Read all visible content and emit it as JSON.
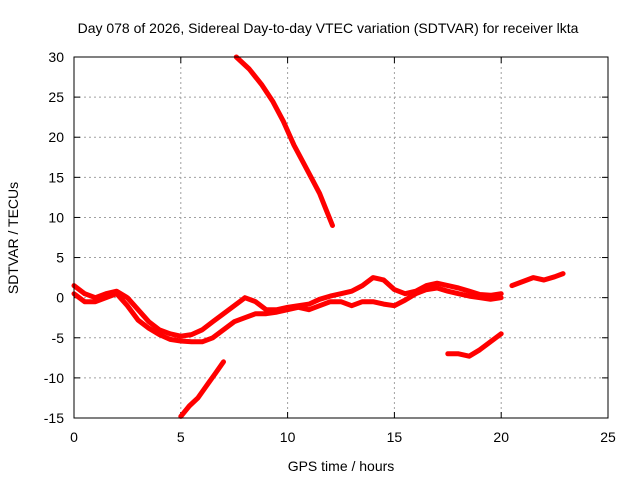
{
  "chart_data": {
    "type": "line",
    "title": "Day 078 of 2026, Sidereal Day-to-day VTEC variation (SDTVAR) for receiver lkta",
    "xlabel": "GPS time / hours",
    "ylabel": "SDTVAR / TECUs",
    "xlim": [
      0,
      25
    ],
    "ylim": [
      -15,
      30
    ],
    "xticks": [
      0,
      5,
      10,
      15,
      20,
      25
    ],
    "yticks": [
      -15,
      -10,
      -5,
      0,
      5,
      10,
      15,
      20,
      25,
      30
    ],
    "grid": true,
    "color": "#ff0000",
    "series": [
      {
        "name": "arc-high",
        "x": [
          7.6,
          8.2,
          8.8,
          9.3,
          9.8,
          10.3,
          10.7,
          11.1,
          11.5,
          11.8,
          12.1
        ],
        "y": [
          30,
          28.5,
          26.5,
          24.5,
          22,
          19,
          17,
          15,
          13,
          11,
          9
        ]
      },
      {
        "name": "arc-low-left",
        "x": [
          5.0,
          5.4,
          5.8,
          6.2,
          6.6,
          7.0
        ],
        "y": [
          -14.8,
          -13.5,
          -12.5,
          -11,
          -9.5,
          -8
        ]
      },
      {
        "name": "arc-main-upper",
        "x": [
          0.0,
          0.5,
          1.0,
          1.5,
          2.0,
          2.5,
          3.0,
          3.5,
          4.0,
          4.5,
          5.0,
          5.5,
          6.0,
          6.5,
          7.0,
          7.5,
          8.0,
          8.5,
          9.0,
          9.5,
          10.0,
          10.5,
          11.0,
          11.5,
          12.0,
          12.5,
          13.0,
          13.5,
          14.0,
          14.5,
          15.0,
          15.5,
          16.0,
          16.5,
          17.0,
          17.5,
          18.0,
          18.5,
          19.0,
          19.5,
          20.0
        ],
        "y": [
          1.5,
          0.5,
          0,
          0.5,
          0.8,
          0,
          -1.5,
          -3,
          -4,
          -4.5,
          -4.8,
          -4.6,
          -4,
          -3,
          -2,
          -1,
          0,
          -0.5,
          -1.5,
          -1.5,
          -1.2,
          -1,
          -0.8,
          -0.2,
          0.2,
          0.5,
          0.8,
          1.5,
          2.5,
          2.2,
          1,
          0.5,
          0.8,
          1.5,
          1.8,
          1.5,
          1.2,
          0.8,
          0.4,
          0.3,
          0.5
        ]
      },
      {
        "name": "arc-main-lower",
        "x": [
          0.0,
          0.5,
          1.0,
          1.5,
          2.0,
          2.5,
          3.0,
          3.5,
          4.0,
          4.5,
          5.0,
          5.5,
          6.0,
          6.5,
          7.0,
          7.5,
          8.0,
          8.5,
          9.0,
          9.5,
          10.0,
          10.5,
          11.0,
          11.5,
          12.0,
          12.5,
          13.0,
          13.5,
          14.0,
          14.5,
          15.0,
          15.5,
          16.0,
          16.5,
          17.0,
          17.5,
          18.0,
          18.5,
          19.0,
          19.5,
          20.0
        ],
        "y": [
          0.5,
          -0.5,
          -0.5,
          0,
          0.5,
          -1,
          -2.8,
          -3.8,
          -4.6,
          -5.2,
          -5.4,
          -5.5,
          -5.5,
          -5,
          -4,
          -3,
          -2.5,
          -2,
          -2,
          -1.8,
          -1.5,
          -1.2,
          -1.5,
          -1,
          -0.5,
          -0.5,
          -1,
          -0.5,
          -0.5,
          -0.8,
          -1,
          -0.3,
          0.5,
          1,
          1.2,
          0.8,
          0.5,
          0.2,
          0,
          -0.2,
          0
        ]
      },
      {
        "name": "arc-mid-lower-right",
        "x": [
          17.5,
          18.0,
          18.5,
          19.0,
          19.5,
          20.0
        ],
        "y": [
          -7,
          -7,
          -7.3,
          -6.5,
          -5.5,
          -4.5
        ]
      },
      {
        "name": "arc-far-right",
        "x": [
          20.5,
          21.0,
          21.5,
          22.0,
          22.5,
          22.9
        ],
        "y": [
          1.5,
          2,
          2.5,
          2.2,
          2.6,
          3
        ]
      }
    ]
  }
}
